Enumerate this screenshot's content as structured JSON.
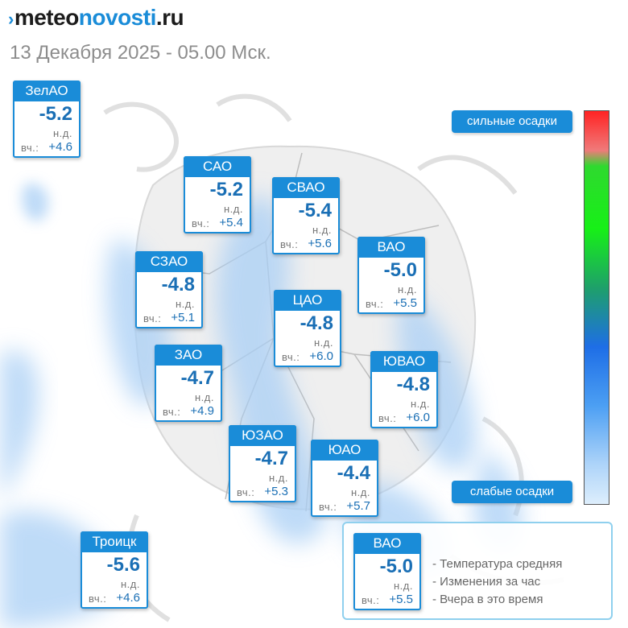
{
  "header": {
    "logo_prefix": "meteo",
    "logo_accent": "novosti",
    "logo_suffix": ".ru",
    "date_line": "13 Декабря 2025 - 05.00 Мск."
  },
  "districts": [
    {
      "id": "zelao",
      "name": "ЗелАО",
      "temp": "-5.2",
      "nd": "н.д.",
      "vch_label": "вч.:",
      "vch": "+4.6"
    },
    {
      "id": "sao",
      "name": "САО",
      "temp": "-5.2",
      "nd": "н.д.",
      "vch_label": "вч.:",
      "vch": "+5.4"
    },
    {
      "id": "svao",
      "name": "СВАО",
      "temp": "-5.4",
      "nd": "н.д.",
      "vch_label": "вч.:",
      "vch": "+5.6"
    },
    {
      "id": "szao",
      "name": "СЗАО",
      "temp": "-4.8",
      "nd": "н.д.",
      "vch_label": "вч.:",
      "vch": "+5.1"
    },
    {
      "id": "vao",
      "name": "ВАО",
      "temp": "-5.0",
      "nd": "н.д.",
      "vch_label": "вч.:",
      "vch": "+5.5"
    },
    {
      "id": "tsao",
      "name": "ЦАО",
      "temp": "-4.8",
      "nd": "н.д.",
      "vch_label": "вч.:",
      "vch": "+6.0"
    },
    {
      "id": "zao",
      "name": "ЗАО",
      "temp": "-4.7",
      "nd": "н.д.",
      "vch_label": "вч.:",
      "vch": "+4.9"
    },
    {
      "id": "yuvao",
      "name": "ЮВАО",
      "temp": "-4.8",
      "nd": "н.д.",
      "vch_label": "вч.:",
      "vch": "+6.0"
    },
    {
      "id": "yuzao",
      "name": "ЮЗАО",
      "temp": "-4.7",
      "nd": "н.д.",
      "vch_label": "вч.:",
      "vch": "+5.3"
    },
    {
      "id": "yuao",
      "name": "ЮАО",
      "temp": "-4.4",
      "nd": "н.д.",
      "vch_label": "вч.:",
      "vch": "+5.7"
    },
    {
      "id": "troitsk",
      "name": "Троицк",
      "temp": "-5.6",
      "nd": "н.д.",
      "vch_label": "вч.:",
      "vch": "+4.6"
    }
  ],
  "scale": {
    "top_label": "сильные осадки",
    "bottom_label": "слабые осадки",
    "colors": [
      "#ff2323",
      "#17f017",
      "#1e6ee6",
      "#ddeefc"
    ]
  },
  "legend": {
    "sample": {
      "name": "ВАО",
      "temp": "-5.0",
      "nd": "н.д.",
      "vch_label": "вч.:",
      "vch": "+5.5"
    },
    "line_1": "- Температура средняя",
    "line_2": "- Изменения за час",
    "line_3": "- Вчера в это время"
  },
  "colors": {
    "accent": "#1a8cd8",
    "value_text": "#1a6fb5",
    "precip": "#a9cff5"
  }
}
